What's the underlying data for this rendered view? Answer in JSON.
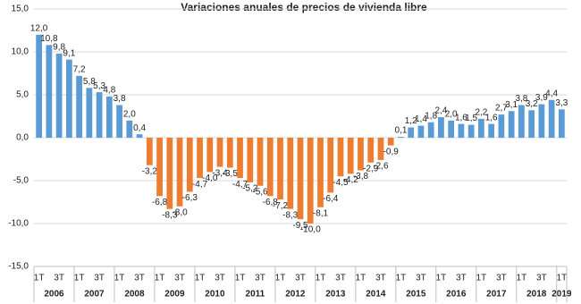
{
  "chart_data": {
    "type": "bar",
    "title": "Variaciones anuales de precios de vivienda libre",
    "categories": [
      "1T",
      null,
      "3T",
      null,
      "1T",
      null,
      "3T",
      null,
      "1T",
      null,
      "3T",
      null,
      "1T",
      null,
      "3T",
      null,
      "1T",
      null,
      "3T",
      null,
      "1T",
      null,
      "3T",
      null,
      "1T",
      null,
      "3T",
      null,
      "1T",
      null,
      "3T",
      null,
      "1T",
      null,
      "3T",
      null,
      "1T",
      null,
      "3T",
      null,
      "1T",
      null,
      "3T",
      null,
      "1T",
      null,
      "3T",
      null,
      "1T",
      null,
      "3T",
      null,
      "1T"
    ],
    "years": [
      "2006",
      "2007",
      "2008",
      "2009",
      "2010",
      "2011",
      "2012",
      "2013",
      "2014",
      "2015",
      "2016",
      "2017",
      "2018",
      "2019"
    ],
    "values": [
      12.0,
      10.8,
      9.8,
      9.1,
      7.2,
      5.8,
      5.3,
      4.8,
      3.8,
      2.0,
      0.4,
      -3.2,
      -6.8,
      -8.3,
      -8.0,
      -6.3,
      -4.7,
      -4.0,
      -3.4,
      -3.5,
      -4.7,
      -5.2,
      -5.6,
      -6.8,
      -7.2,
      -8.3,
      -9.5,
      -10.0,
      -8.1,
      -6.4,
      -4.5,
      -4.2,
      -3.8,
      -2.9,
      -2.6,
      -0.9,
      0.1,
      1.2,
      1.4,
      1.8,
      2.4,
      2.0,
      1.6,
      1.5,
      2.2,
      1.6,
      2.7,
      3.1,
      3.8,
      3.2,
      3.9,
      4.4,
      3.3
    ],
    "value_labels": [
      "12,0",
      "10,8",
      "9,8",
      "9,1",
      "7,2",
      "5,8",
      "5,3",
      "4,8",
      "3,8",
      "2,0",
      "0,4",
      "-3,2",
      "-6,8",
      "-8,3",
      "-8,0",
      "-6,3",
      "-4,7",
      "-4,0",
      "-3,4",
      "-3,5",
      "-4,7",
      "-5,2",
      "-5,6",
      "-6,8",
      "-7,2",
      "-8,3",
      "-9,5",
      "-10,0",
      "-8,1",
      "-6,4",
      "-4,5",
      "-4,2",
      "-3,8",
      "-2,9",
      "-2,6",
      "-0,9",
      "0,1",
      "1,2",
      "1,4",
      "1,8",
      "2,4",
      "2,0",
      "1,6",
      "1,5",
      "2,2",
      "1,6",
      "2,7",
      "3,1",
      "3,8",
      "3,2",
      "3,9",
      "4,4",
      "3,3"
    ],
    "colors": {
      "positive": "#5b9bd5",
      "negative": "#ed7d31"
    },
    "ylim": [
      -15,
      15
    ],
    "yticks": [
      {
        "value": -15,
        "label": "-15,0"
      },
      {
        "value": -10,
        "label": "-10,0"
      },
      {
        "value": -5,
        "label": "-5,0"
      },
      {
        "value": 0,
        "label": "0,0"
      },
      {
        "value": 5,
        "label": "5,0"
      },
      {
        "value": 10,
        "label": "10,0"
      },
      {
        "value": 15,
        "label": "15,0"
      }
    ],
    "grid": true
  }
}
